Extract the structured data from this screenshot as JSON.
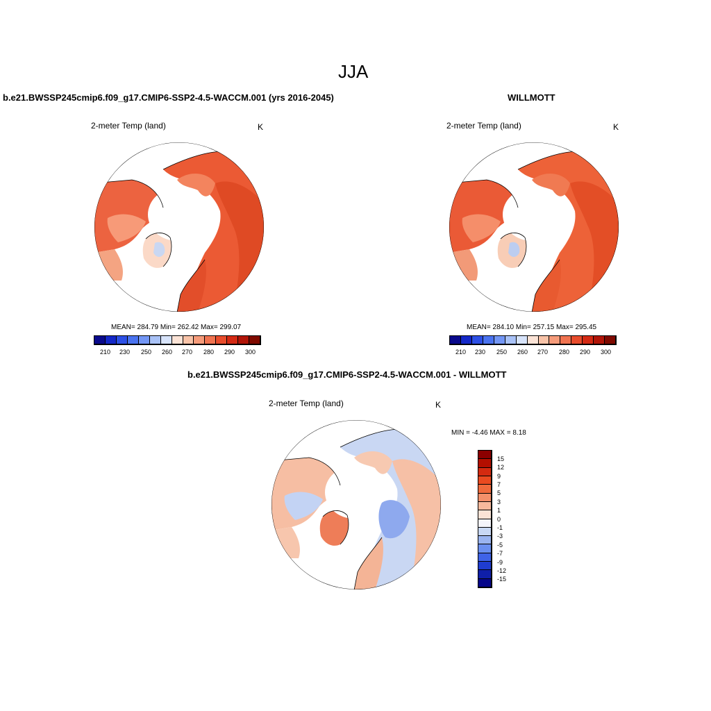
{
  "page": {
    "title": "JJA",
    "left_header": "b.e21.BWSSP245cmip6.f09_g17.CMIP6-SSP2-4.5-WACCM.001 (yrs 2016-2045)",
    "right_header": "WILLMOTT",
    "bottom_header": "b.e21.BWSSP245cmip6.f09_g17.CMIP6-SSP2-4.5-WACCM.001 - WILLMOTT"
  },
  "panels": {
    "model": {
      "variable": "2-meter Temp (land)",
      "units": "K",
      "stats": "MEAN= 284.79  Min= 262.42  Max= 299.07",
      "mean": 284.79,
      "min": 262.42,
      "max": 299.07
    },
    "obs": {
      "variable": "2-meter Temp (land)",
      "units": "K",
      "stats": "MEAN= 284.10  Min= 257.15  Max= 295.45",
      "mean": 284.1,
      "min": 257.15,
      "max": 295.45
    },
    "diff": {
      "variable": "2-meter Temp (land)",
      "units": "K",
      "stats": "MIN =  -4.46 MAX =   8.18",
      "min": -4.46,
      "max": 8.18
    }
  },
  "colorbars": {
    "abs_ticks": [
      "210",
      "230",
      "250",
      "260",
      "270",
      "280",
      "290",
      "300"
    ],
    "abs_colors": [
      "#0a0a8c",
      "#1428c8",
      "#2d50e6",
      "#4a73f0",
      "#7396f5",
      "#a9c2f7",
      "#d7e3fa",
      "#fbe3d6",
      "#f8c3a8",
      "#f59b7a",
      "#f07350",
      "#e84c2c",
      "#d42a14",
      "#b11508",
      "#7f0a00"
    ],
    "diff_ticks": [
      "15",
      "12",
      "9",
      "7",
      "5",
      "3",
      "1",
      "0",
      "-1",
      "-3",
      "-5",
      "-7",
      "-9",
      "-12",
      "-15"
    ],
    "diff_colors": [
      "#8b0000",
      "#b30f00",
      "#d42a10",
      "#ea4a20",
      "#f06a3c",
      "#f4906a",
      "#f8b99c",
      "#fbe3d6",
      "#f4f4fa",
      "#c8d8f4",
      "#9ab4f0",
      "#6a8ff0",
      "#3f63e8",
      "#1f3cd0",
      "#0f1fa8",
      "#06068a"
    ]
  }
}
